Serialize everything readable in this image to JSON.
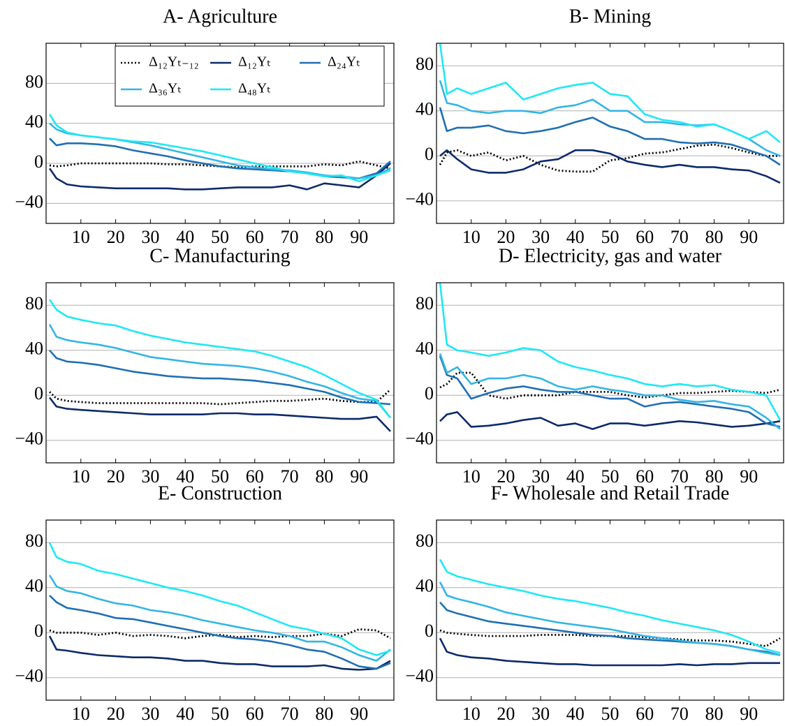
{
  "chart_data": [
    {
      "type": "line",
      "title": "A- Agriculture",
      "legend": "upper right",
      "grid": true,
      "xlim": [
        0,
        100
      ],
      "xticks": [
        10,
        20,
        30,
        40,
        50,
        60,
        70,
        80,
        90
      ],
      "ylim": [
        -60,
        120
      ],
      "yticks": [
        {
          "value": -40,
          "label": "−40"
        },
        0,
        40,
        80
      ],
      "x": [
        1,
        3,
        6,
        10,
        15,
        20,
        25,
        30,
        35,
        40,
        45,
        50,
        55,
        60,
        65,
        70,
        75,
        80,
        85,
        90,
        95,
        99
      ],
      "series": [
        {
          "name": "Δ₁₂Yₜ₋₁₂",
          "color": "#000000",
          "style": "dotted",
          "values": [
            -2,
            -3,
            -2,
            0,
            0,
            0,
            0,
            0,
            -1,
            -1,
            -2,
            -3,
            -4,
            -3,
            -3,
            -3,
            -3,
            -1,
            -2,
            2,
            -2,
            -5
          ]
        },
        {
          "name": "Δ₁₂Yₜ",
          "color": "#0d2a6b",
          "values": [
            -5,
            -15,
            -21,
            -23,
            -24,
            -25,
            -25,
            -25,
            -25,
            -26,
            -26,
            -25,
            -24,
            -24,
            -24,
            -22,
            -26,
            -20,
            -22,
            -24,
            -12,
            0
          ]
        },
        {
          "name": "Δ₂₄Yₜ",
          "color": "#1f6fb4",
          "values": [
            25,
            18,
            20,
            20,
            19,
            17,
            13,
            10,
            7,
            3,
            0,
            -3,
            -5,
            -6,
            -7,
            -8,
            -10,
            -13,
            -14,
            -15,
            -10,
            2
          ]
        },
        {
          "name": "Δ₃₆Yₜ",
          "color": "#33b5e5",
          "values": [
            40,
            34,
            30,
            28,
            26,
            24,
            21,
            18,
            14,
            10,
            6,
            2,
            -2,
            -4,
            -6,
            -7,
            -9,
            -12,
            -13,
            -15,
            -12,
            -5
          ]
        },
        {
          "name": "Δ₄₈Yₜ",
          "color": "#1ee8f5",
          "values": [
            49,
            38,
            31,
            28,
            26,
            24,
            22,
            21,
            18,
            15,
            12,
            8,
            4,
            0,
            -4,
            -8,
            -10,
            -13,
            -12,
            -18,
            -12,
            -7
          ]
        }
      ]
    },
    {
      "type": "line",
      "title": "B- Mining",
      "grid": true,
      "xlim": [
        0,
        100
      ],
      "xticks": [
        10,
        20,
        30,
        40,
        50,
        60,
        70,
        80,
        90
      ],
      "ylim": [
        -60,
        100
      ],
      "yticks": [
        {
          "value": -40,
          "label": "−40"
        },
        0,
        40,
        80
      ],
      "x": [
        1,
        3,
        6,
        10,
        15,
        20,
        25,
        30,
        35,
        40,
        45,
        50,
        55,
        60,
        65,
        70,
        75,
        80,
        85,
        90,
        95,
        99
      ],
      "series": [
        {
          "color": "#000000",
          "style": "dotted",
          "values": [
            -8,
            3,
            5,
            0,
            3,
            -4,
            0,
            -8,
            -13,
            -14,
            -14,
            -4,
            -2,
            2,
            3,
            6,
            9,
            10,
            7,
            3,
            0,
            0
          ]
        },
        {
          "color": "#0d2a6b",
          "values": [
            0,
            5,
            -3,
            -12,
            -15,
            -15,
            -12,
            -5,
            -3,
            5,
            5,
            2,
            -5,
            -8,
            -10,
            -8,
            -10,
            -10,
            -12,
            -13,
            -18,
            -24
          ]
        },
        {
          "color": "#1f6fb4",
          "values": [
            43,
            22,
            25,
            25,
            27,
            22,
            20,
            22,
            25,
            30,
            34,
            26,
            22,
            15,
            15,
            12,
            11,
            12,
            10,
            5,
            0,
            -8
          ]
        },
        {
          "color": "#33b5e5",
          "values": [
            67,
            47,
            45,
            40,
            38,
            40,
            40,
            38,
            43,
            45,
            50,
            40,
            40,
            30,
            30,
            28,
            27,
            28,
            22,
            15,
            5,
            0
          ]
        },
        {
          "color": "#1ee8f5",
          "values": [
            100,
            55,
            60,
            55,
            60,
            65,
            50,
            55,
            60,
            63,
            65,
            55,
            53,
            37,
            32,
            30,
            26,
            28,
            22,
            15,
            22,
            12
          ]
        }
      ]
    },
    {
      "type": "line",
      "title": "C- Manufacturing",
      "grid": true,
      "xlim": [
        0,
        100
      ],
      "xticks": [
        10,
        20,
        30,
        40,
        50,
        60,
        70,
        80,
        90
      ],
      "ylim": [
        -60,
        100
      ],
      "yticks": [
        {
          "value": -40,
          "label": "−40"
        },
        0,
        40,
        80
      ],
      "x": [
        1,
        3,
        6,
        10,
        15,
        20,
        25,
        30,
        35,
        40,
        45,
        50,
        55,
        60,
        65,
        70,
        75,
        80,
        85,
        90,
        95,
        99
      ],
      "series": [
        {
          "color": "#000000",
          "style": "dotted",
          "values": [
            3,
            -3,
            -5,
            -6,
            -7,
            -7,
            -7,
            -7,
            -7,
            -7,
            -7,
            -8,
            -7,
            -6,
            -5,
            -5,
            -4,
            -3,
            -5,
            -6,
            -6,
            5
          ]
        },
        {
          "color": "#0d2a6b",
          "values": [
            -2,
            -10,
            -12,
            -13,
            -14,
            -15,
            -16,
            -17,
            -17,
            -17,
            -17,
            -16,
            -16,
            -17,
            -17,
            -18,
            -19,
            -20,
            -21,
            -21,
            -19,
            -32
          ]
        },
        {
          "color": "#1f6fb4",
          "values": [
            40,
            33,
            30,
            29,
            27,
            24,
            21,
            19,
            17,
            16,
            15,
            15,
            14,
            13,
            11,
            9,
            6,
            3,
            -2,
            -6,
            -7,
            -8
          ]
        },
        {
          "color": "#33b5e5",
          "values": [
            63,
            52,
            49,
            47,
            45,
            42,
            38,
            34,
            32,
            30,
            28,
            27,
            26,
            24,
            21,
            17,
            12,
            8,
            2,
            -3,
            -5,
            -20
          ]
        },
        {
          "color": "#1ee8f5",
          "values": [
            85,
            76,
            70,
            67,
            64,
            62,
            57,
            53,
            50,
            47,
            45,
            43,
            41,
            39,
            35,
            30,
            25,
            18,
            10,
            2,
            -4,
            -20
          ]
        }
      ]
    },
    {
      "type": "line",
      "title": "D- Electricity, gas and water",
      "grid": true,
      "xlim": [
        0,
        100
      ],
      "xticks": [
        10,
        20,
        30,
        40,
        50,
        60,
        70,
        80,
        90
      ],
      "ylim": [
        -60,
        100
      ],
      "yticks": [
        {
          "value": -40,
          "label": "−40"
        },
        0,
        40,
        80
      ],
      "x": [
        1,
        3,
        6,
        10,
        15,
        20,
        25,
        30,
        35,
        40,
        45,
        50,
        55,
        60,
        65,
        70,
        75,
        80,
        85,
        90,
        95,
        99
      ],
      "series": [
        {
          "color": "#000000",
          "style": "dotted",
          "values": [
            7,
            10,
            20,
            20,
            0,
            -3,
            0,
            0,
            0,
            3,
            3,
            3,
            0,
            -2,
            0,
            2,
            2,
            3,
            4,
            3,
            2,
            5
          ]
        },
        {
          "color": "#0d2a6b",
          "values": [
            -23,
            -17,
            -15,
            -28,
            -27,
            -25,
            -22,
            -20,
            -27,
            -25,
            -30,
            -25,
            -25,
            -27,
            -25,
            -23,
            -24,
            -26,
            -28,
            -27,
            -25,
            -23
          ]
        },
        {
          "color": "#1f6fb4",
          "values": [
            35,
            18,
            15,
            -3,
            2,
            6,
            8,
            5,
            3,
            3,
            0,
            -3,
            -3,
            -10,
            -7,
            -6,
            -8,
            -10,
            -12,
            -15,
            -25,
            -28
          ]
        },
        {
          "color": "#33b5e5",
          "values": [
            37,
            20,
            25,
            10,
            15,
            15,
            18,
            15,
            8,
            5,
            8,
            5,
            3,
            0,
            0,
            -4,
            -6,
            -5,
            -8,
            -10,
            -20,
            -30
          ]
        },
        {
          "color": "#1ee8f5",
          "values": [
            100,
            45,
            40,
            38,
            35,
            38,
            42,
            40,
            30,
            25,
            22,
            18,
            15,
            10,
            8,
            10,
            8,
            9,
            5,
            3,
            0,
            -22
          ]
        }
      ]
    },
    {
      "type": "line",
      "title": "E- Construction",
      "grid": true,
      "xlim": [
        0,
        100
      ],
      "xticks": [
        10,
        20,
        30,
        40,
        50,
        60,
        70,
        80,
        90
      ],
      "ylim": [
        -60,
        100
      ],
      "yticks": [
        {
          "value": -40,
          "label": "−40"
        },
        0,
        40,
        80
      ],
      "x": [
        1,
        3,
        6,
        10,
        15,
        20,
        25,
        30,
        35,
        40,
        45,
        50,
        55,
        60,
        65,
        70,
        75,
        80,
        85,
        90,
        95,
        99
      ],
      "series": [
        {
          "color": "#000000",
          "style": "dotted",
          "values": [
            2,
            0,
            0,
            0,
            -2,
            0,
            -3,
            -2,
            -3,
            -5,
            -3,
            -2,
            -4,
            -3,
            -4,
            -3,
            -3,
            -1,
            -3,
            3,
            2,
            -5
          ]
        },
        {
          "color": "#0d2a6b",
          "values": [
            -3,
            -15,
            -16,
            -18,
            -20,
            -21,
            -22,
            -22,
            -23,
            -25,
            -25,
            -27,
            -28,
            -28,
            -30,
            -30,
            -30,
            -29,
            -32,
            -33,
            -32,
            -25
          ]
        },
        {
          "color": "#1f6fb4",
          "values": [
            33,
            27,
            22,
            20,
            17,
            13,
            12,
            9,
            6,
            3,
            0,
            -3,
            -5,
            -6,
            -8,
            -11,
            -15,
            -17,
            -23,
            -30,
            -32,
            -27
          ]
        },
        {
          "color": "#33b5e5",
          "values": [
            51,
            41,
            37,
            35,
            30,
            26,
            24,
            20,
            18,
            15,
            11,
            8,
            5,
            2,
            0,
            -3,
            -8,
            -8,
            -13,
            -20,
            -25,
            -15
          ]
        },
        {
          "color": "#1ee8f5",
          "values": [
            80,
            67,
            63,
            61,
            55,
            52,
            48,
            44,
            40,
            37,
            33,
            28,
            24,
            18,
            12,
            6,
            3,
            -1,
            -5,
            -15,
            -20,
            -16
          ]
        }
      ]
    },
    {
      "type": "line",
      "title": "F- Wholesale and Retail Trade",
      "grid": true,
      "xlim": [
        0,
        100
      ],
      "xticks": [
        10,
        20,
        30,
        40,
        50,
        60,
        70,
        80,
        90
      ],
      "ylim": [
        -60,
        100
      ],
      "yticks": [
        {
          "value": -40,
          "label": "−40"
        },
        0,
        40,
        80
      ],
      "x": [
        1,
        3,
        6,
        10,
        15,
        20,
        25,
        30,
        35,
        40,
        45,
        50,
        55,
        60,
        65,
        70,
        75,
        80,
        85,
        90,
        95,
        99
      ],
      "series": [
        {
          "color": "#000000",
          "style": "dotted",
          "values": [
            2,
            0,
            -1,
            -2,
            -3,
            -3,
            -3,
            -2,
            -2,
            -2,
            -3,
            -3,
            -3,
            -4,
            -5,
            -6,
            -7,
            -7,
            -8,
            -10,
            -12,
            -5
          ]
        },
        {
          "color": "#0d2a6b",
          "values": [
            -5,
            -17,
            -20,
            -22,
            -23,
            -25,
            -26,
            -27,
            -28,
            -28,
            -29,
            -29,
            -29,
            -29,
            -29,
            -28,
            -29,
            -28,
            -28,
            -27,
            -27,
            -27
          ]
        },
        {
          "color": "#1f6fb4",
          "values": [
            27,
            20,
            17,
            14,
            10,
            8,
            6,
            4,
            2,
            0,
            -2,
            -3,
            -5,
            -6,
            -7,
            -8,
            -9,
            -10,
            -12,
            -15,
            -17,
            -20
          ]
        },
        {
          "color": "#33b5e5",
          "values": [
            45,
            33,
            30,
            27,
            23,
            18,
            15,
            12,
            9,
            7,
            5,
            3,
            0,
            -3,
            -5,
            -7,
            -9,
            -10,
            -12,
            -15,
            -18,
            -20
          ]
        },
        {
          "color": "#1ee8f5",
          "values": [
            65,
            54,
            50,
            47,
            43,
            40,
            37,
            33,
            30,
            28,
            25,
            22,
            18,
            15,
            11,
            8,
            5,
            2,
            -2,
            -8,
            -15,
            -18
          ]
        }
      ]
    }
  ]
}
